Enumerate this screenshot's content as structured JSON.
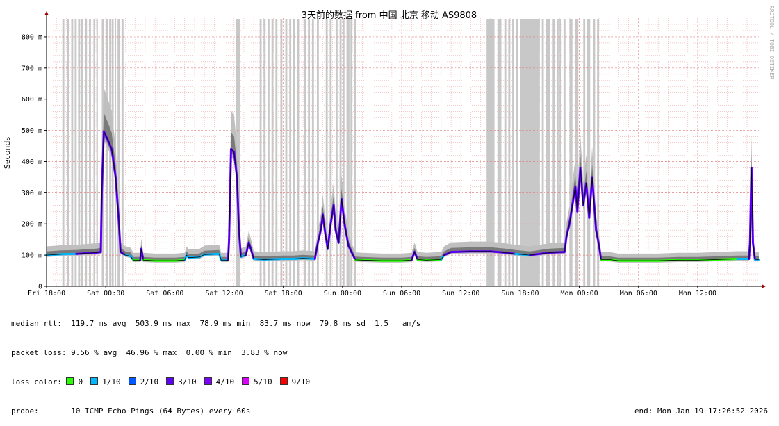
{
  "chart_data": {
    "type": "line",
    "title": "3天前的数据 from 中国 北京 移动 AS9808",
    "ylabel": "Seconds",
    "side_label": "RRDTOOL / TOBI OETIKER",
    "ylim": [
      0,
      860
    ],
    "y_ticks": [
      {
        "v": 0,
        "label": "0"
      },
      {
        "v": 100,
        "label": "100 m"
      },
      {
        "v": 200,
        "label": "200 m"
      },
      {
        "v": 300,
        "label": "300 m"
      },
      {
        "v": 400,
        "label": "400 m"
      },
      {
        "v": 500,
        "label": "500 m"
      },
      {
        "v": 600,
        "label": "600 m"
      },
      {
        "v": 700,
        "label": "700 m"
      },
      {
        "v": 800,
        "label": "800 m"
      }
    ],
    "x_hours_range": [
      0,
      72.2
    ],
    "x_ticks": [
      {
        "h": 0,
        "label": "Fri 18:00"
      },
      {
        "h": 6,
        "label": "Sat 00:00"
      },
      {
        "h": 12,
        "label": "Sat 06:00"
      },
      {
        "h": 18,
        "label": "Sat 12:00"
      },
      {
        "h": 24,
        "label": "Sat 18:00"
      },
      {
        "h": 30,
        "label": "Sun 00:00"
      },
      {
        "h": 36,
        "label": "Sun 06:00"
      },
      {
        "h": 42,
        "label": "Sun 12:00"
      },
      {
        "h": 48,
        "label": "Sun 18:00"
      },
      {
        "h": 54,
        "label": "Mon 00:00"
      },
      {
        "h": 60,
        "label": "Mon 06:00"
      },
      {
        "h": 66,
        "label": "Mon 12:00"
      }
    ],
    "loss_bands_hours": [
      [
        1.6,
        1.8
      ],
      [
        2.1,
        2.3
      ],
      [
        2.5,
        2.7
      ],
      [
        2.85,
        3.05
      ],
      [
        3.2,
        3.4
      ],
      [
        3.5,
        3.7
      ],
      [
        3.9,
        4.1
      ],
      [
        4.3,
        4.5
      ],
      [
        4.75,
        4.9
      ],
      [
        5.05,
        5.2
      ],
      [
        5.6,
        5.8
      ],
      [
        6.0,
        6.2
      ],
      [
        6.35,
        6.55
      ],
      [
        6.6,
        6.8
      ],
      [
        6.9,
        7.05
      ],
      [
        7.2,
        7.4
      ],
      [
        7.6,
        7.8
      ],
      [
        19.2,
        19.6
      ],
      [
        21.6,
        21.8
      ],
      [
        22.0,
        22.2
      ],
      [
        22.4,
        22.6
      ],
      [
        22.8,
        23.0
      ],
      [
        23.2,
        23.4
      ],
      [
        23.7,
        23.9
      ],
      [
        24.2,
        24.4
      ],
      [
        24.6,
        24.8
      ],
      [
        25.0,
        25.2
      ],
      [
        25.4,
        25.6
      ],
      [
        26.1,
        26.3
      ],
      [
        26.5,
        26.7
      ],
      [
        26.9,
        27.1
      ],
      [
        27.4,
        27.6
      ],
      [
        28.3,
        28.5
      ],
      [
        28.7,
        28.9
      ],
      [
        29.3,
        29.5
      ],
      [
        29.7,
        29.9
      ],
      [
        30.0,
        30.2
      ],
      [
        30.4,
        30.7
      ],
      [
        30.8,
        31.0
      ],
      [
        31.2,
        31.4
      ],
      [
        44.6,
        45.4
      ],
      [
        45.7,
        46.1
      ],
      [
        46.4,
        46.6
      ],
      [
        46.8,
        47.0
      ],
      [
        47.2,
        47.4
      ],
      [
        47.6,
        47.8
      ],
      [
        48.0,
        50.0
      ],
      [
        50.2,
        50.4
      ],
      [
        50.6,
        51.0
      ],
      [
        51.3,
        51.5
      ],
      [
        51.7,
        51.9
      ],
      [
        52.0,
        52.2
      ],
      [
        52.4,
        52.6
      ],
      [
        53.0,
        53.3
      ],
      [
        53.6,
        53.9
      ],
      [
        54.4,
        54.6
      ],
      [
        54.8,
        55.1
      ],
      [
        55.4,
        55.6
      ],
      [
        55.8,
        56.0
      ]
    ],
    "median_rtt_ms": [
      [
        0,
        100
      ],
      [
        1.5,
        103
      ],
      [
        3,
        104
      ],
      [
        5,
        108
      ],
      [
        5.5,
        110
      ],
      [
        5.6,
        300
      ],
      [
        5.8,
        497
      ],
      [
        6.2,
        470
      ],
      [
        6.6,
        440
      ],
      [
        7.0,
        350
      ],
      [
        7.3,
        220
      ],
      [
        7.5,
        110
      ],
      [
        8.0,
        100
      ],
      [
        8.5,
        97
      ],
      [
        8.8,
        84
      ],
      [
        9.5,
        84
      ],
      [
        9.6,
        120
      ],
      [
        9.8,
        84
      ],
      [
        11,
        82
      ],
      [
        13,
        82
      ],
      [
        14,
        84
      ],
      [
        14.2,
        100
      ],
      [
        14.4,
        92
      ],
      [
        15.5,
        94
      ],
      [
        16,
        102
      ],
      [
        17.5,
        104
      ],
      [
        17.7,
        84
      ],
      [
        18.4,
        84
      ],
      [
        18.5,
        150
      ],
      [
        18.7,
        440
      ],
      [
        19.0,
        430
      ],
      [
        19.3,
        350
      ],
      [
        19.5,
        180
      ],
      [
        19.7,
        95
      ],
      [
        20.2,
        100
      ],
      [
        20.5,
        140
      ],
      [
        20.8,
        110
      ],
      [
        21.0,
        88
      ],
      [
        22,
        86
      ],
      [
        24,
        88
      ],
      [
        25,
        88
      ],
      [
        26,
        90
      ],
      [
        27.2,
        88
      ],
      [
        27.5,
        140
      ],
      [
        27.8,
        180
      ],
      [
        28.0,
        230
      ],
      [
        28.2,
        180
      ],
      [
        28.5,
        120
      ],
      [
        28.8,
        200
      ],
      [
        29.1,
        260
      ],
      [
        29.3,
        180
      ],
      [
        29.6,
        140
      ],
      [
        29.9,
        280
      ],
      [
        30.2,
        200
      ],
      [
        30.6,
        130
      ],
      [
        30.9,
        110
      ],
      [
        31.3,
        85
      ],
      [
        32,
        84
      ],
      [
        34,
        82
      ],
      [
        36,
        82
      ],
      [
        37,
        84
      ],
      [
        37.3,
        110
      ],
      [
        37.6,
        86
      ],
      [
        38.5,
        84
      ],
      [
        40,
        86
      ],
      [
        40.3,
        100
      ],
      [
        41,
        110
      ],
      [
        43,
        112
      ],
      [
        45,
        112
      ],
      [
        46.5,
        108
      ],
      [
        47.5,
        104
      ],
      [
        49,
        100
      ],
      [
        51,
        108
      ],
      [
        52.5,
        110
      ],
      [
        52.7,
        160
      ],
      [
        53.0,
        200
      ],
      [
        53.3,
        260
      ],
      [
        53.6,
        320
      ],
      [
        53.8,
        240
      ],
      [
        54.1,
        380
      ],
      [
        54.4,
        260
      ],
      [
        54.7,
        330
      ],
      [
        55.0,
        220
      ],
      [
        55.3,
        350
      ],
      [
        55.7,
        180
      ],
      [
        56.0,
        130
      ],
      [
        56.2,
        86
      ],
      [
        57,
        86
      ],
      [
        58,
        82
      ],
      [
        60,
        82
      ],
      [
        62,
        82
      ],
      [
        64,
        84
      ],
      [
        66,
        84
      ],
      [
        68,
        86
      ],
      [
        70,
        88
      ],
      [
        71.2,
        88
      ],
      [
        71.3,
        140
      ],
      [
        71.45,
        380
      ],
      [
        71.6,
        140
      ],
      [
        71.8,
        86
      ],
      [
        72.2,
        86
      ]
    ],
    "loss_colors": [
      {
        "label": "0",
        "color": "#26ff00"
      },
      {
        "label": "1/10",
        "color": "#00b8ff"
      },
      {
        "label": "2/10",
        "color": "#0059ff"
      },
      {
        "label": "3/10",
        "color": "#5e00ff"
      },
      {
        "label": "4/10",
        "color": "#7e00ff"
      },
      {
        "label": "5/10",
        "color": "#dd00ff"
      },
      {
        "label": "9/10",
        "color": "#ff0000"
      }
    ]
  },
  "legend": {
    "median_rtt": "median rtt:  119.7 ms avg  503.9 ms max  78.9 ms min  83.7 ms now  79.8 ms sd  1.5   am/s",
    "packet_loss": "packet loss: 9.56 % avg  46.96 % max  0.00 % min  3.83 % now",
    "loss_color_label": "loss color:",
    "probe": "probe:       10 ICMP Echo Pings (64 Bytes) every 60s",
    "end": "end: Mon Jan 19 17:26:52 2026"
  }
}
